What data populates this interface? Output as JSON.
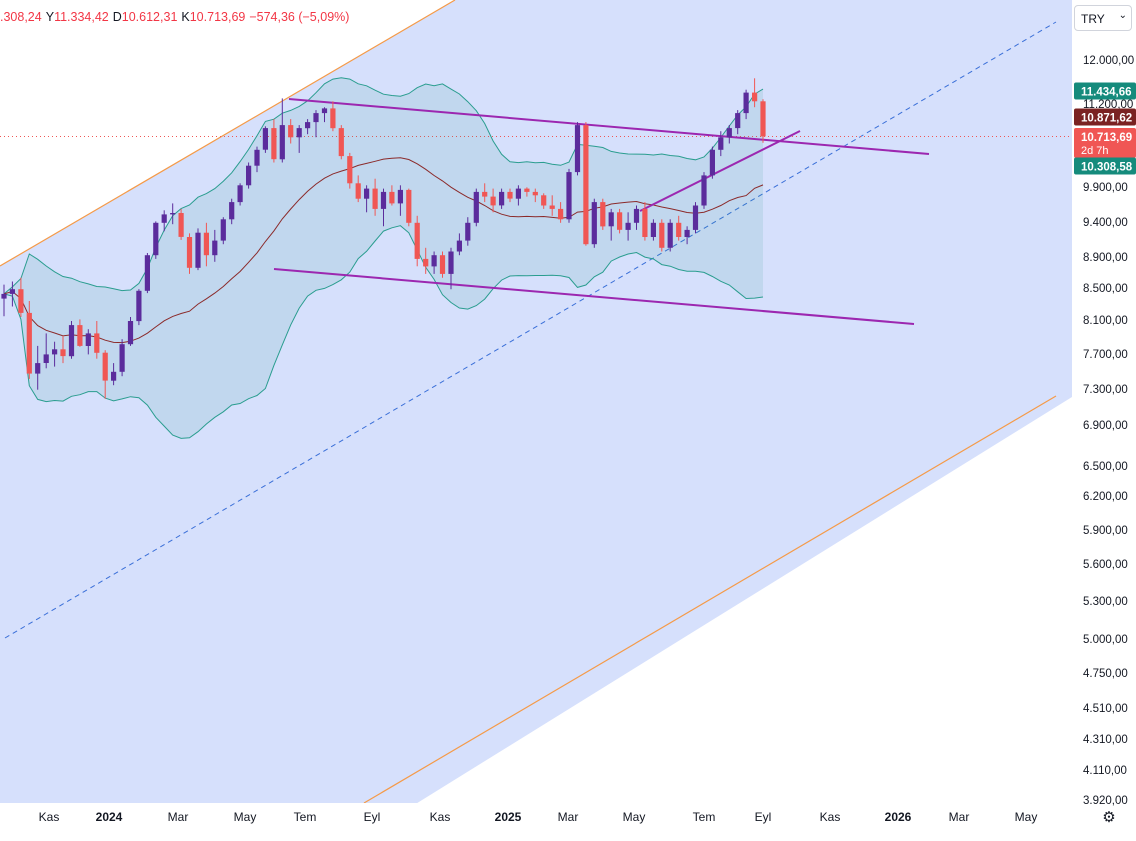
{
  "header": {
    "open": ".308,24",
    "high_prefix": "Y",
    "high": "11.334,42",
    "low_prefix": "D",
    "low": "10.612,31",
    "close_prefix": "K",
    "close": "10.713,69",
    "change": "−574,36 (−5,09%)"
  },
  "currency": {
    "label": "TRY"
  },
  "colors": {
    "up": "#5b2c9c",
    "down": "#f05654",
    "band": "#2a9d8f",
    "mid": "#8b2a2a",
    "channel": "#f59a48",
    "trend": "#9c27b0",
    "fill": "#d6e0fc",
    "dash": "#3a6fd8"
  },
  "chart_data": {
    "type": "candlestick",
    "scale": "log",
    "ylim": [
      3920,
      12400
    ],
    "x_labels": [
      "Kas",
      "2024",
      "Mar",
      "May",
      "Tem",
      "Eyl",
      "Kas",
      "2025",
      "Mar",
      "May",
      "Tem",
      "Eyl",
      "Kas",
      "2026",
      "Mar",
      "May"
    ],
    "y_ticks": [
      "12.000,00",
      "11.200,00",
      "9.900,00",
      "9.400,00",
      "8.900,00",
      "8.500,00",
      "8.100,00",
      "7.700,00",
      "7.300,00",
      "6.900,00",
      "6.500,00",
      "6.200,00",
      "5.900,00",
      "5.600,00",
      "5.300,00",
      "5.000,00",
      "4.750,00",
      "4.510,00",
      "4.310,00",
      "4.110,00",
      "3.920,00"
    ],
    "price_labels": [
      {
        "text": "11.434,66",
        "value": 11434.66,
        "color": "#158b7c"
      },
      {
        "text": "10.871,62",
        "value": 10871.62,
        "color": "#7a2222"
      },
      {
        "text": "10.713,69",
        "sub": "2d 7h",
        "value": 10713.69,
        "color": "#f05654"
      },
      {
        "text": "10.308,58",
        "value": 10308.58,
        "color": "#158b7c"
      }
    ],
    "current_price": 10713.69,
    "candles_ohlc": [
      [
        8380,
        8560,
        8160,
        8440
      ],
      [
        8440,
        8600,
        8280,
        8500
      ],
      [
        8500,
        8650,
        8150,
        8200
      ],
      [
        8200,
        8350,
        7420,
        7480
      ],
      [
        7480,
        7800,
        7300,
        7600
      ],
      [
        7600,
        7950,
        7540,
        7700
      ],
      [
        7700,
        7850,
        7560,
        7760
      ],
      [
        7760,
        7920,
        7600,
        7680
      ],
      [
        7680,
        8100,
        7650,
        8050
      ],
      [
        8050,
        8120,
        7790,
        7800
      ],
      [
        7800,
        8000,
        7700,
        7950
      ],
      [
        7950,
        8100,
        7650,
        7720
      ],
      [
        7720,
        7750,
        7200,
        7400
      ],
      [
        7400,
        7600,
        7350,
        7500
      ],
      [
        7500,
        7880,
        7450,
        7820
      ],
      [
        7820,
        8150,
        7800,
        8100
      ],
      [
        8100,
        8500,
        8050,
        8480
      ],
      [
        8480,
        8980,
        8450,
        8950
      ],
      [
        8950,
        9420,
        8900,
        9400
      ],
      [
        9400,
        9580,
        9280,
        9520
      ],
      [
        9520,
        9680,
        9380,
        9540
      ],
      [
        9540,
        9600,
        9160,
        9200
      ],
      [
        9200,
        9250,
        8700,
        8780
      ],
      [
        8780,
        9320,
        8750,
        9260
      ],
      [
        9260,
        9400,
        8800,
        8950
      ],
      [
        8950,
        9300,
        8860,
        9150
      ],
      [
        9150,
        9480,
        9100,
        9450
      ],
      [
        9450,
        9750,
        9380,
        9700
      ],
      [
        9700,
        9980,
        9650,
        9950
      ],
      [
        9950,
        10300,
        9900,
        10250
      ],
      [
        10250,
        10550,
        10150,
        10500
      ],
      [
        10500,
        10880,
        10450,
        10850
      ],
      [
        10850,
        11000,
        10300,
        10350
      ],
      [
        10350,
        11350,
        10300,
        10900
      ],
      [
        10900,
        11000,
        10600,
        10700
      ],
      [
        10700,
        10900,
        10450,
        10850
      ],
      [
        10850,
        11000,
        10750,
        10950
      ],
      [
        10950,
        11150,
        10700,
        11100
      ],
      [
        11100,
        11200,
        10950,
        11180
      ],
      [
        11180,
        11300,
        10800,
        10850
      ],
      [
        10850,
        10900,
        10350,
        10400
      ],
      [
        10400,
        10450,
        9900,
        9980
      ],
      [
        9980,
        10100,
        9700,
        9750
      ],
      [
        9750,
        9950,
        9550,
        9900
      ],
      [
        9900,
        10050,
        9500,
        9600
      ],
      [
        9600,
        9900,
        9350,
        9850
      ],
      [
        9850,
        9950,
        9650,
        9680
      ],
      [
        9680,
        9950,
        9500,
        9880
      ],
      [
        9880,
        9900,
        9350,
        9400
      ],
      [
        9400,
        9500,
        8800,
        8900
      ],
      [
        8900,
        9050,
        8700,
        8800
      ],
      [
        8800,
        9000,
        8700,
        8950
      ],
      [
        8950,
        9000,
        8650,
        8700
      ],
      [
        8700,
        9050,
        8500,
        9000
      ],
      [
        9000,
        9250,
        8950,
        9150
      ],
      [
        9150,
        9480,
        9080,
        9400
      ],
      [
        9400,
        9900,
        9350,
        9850
      ],
      [
        9850,
        9980,
        9700,
        9780
      ],
      [
        9780,
        9900,
        9550,
        9650
      ],
      [
        9650,
        9900,
        9600,
        9850
      ],
      [
        9850,
        9900,
        9700,
        9750
      ],
      [
        9750,
        9950,
        9650,
        9900
      ],
      [
        9900,
        9920,
        9780,
        9850
      ],
      [
        9850,
        9900,
        9700,
        9800
      ],
      [
        9800,
        9830,
        9600,
        9650
      ],
      [
        9650,
        9800,
        9500,
        9600
      ],
      [
        9600,
        9700,
        9400,
        9450
      ],
      [
        9450,
        10200,
        9400,
        10150
      ],
      [
        10150,
        10950,
        10100,
        10900
      ],
      [
        10900,
        10950,
        9080,
        9100
      ],
      [
        9100,
        9750,
        9050,
        9700
      ],
      [
        9700,
        9750,
        9300,
        9350
      ],
      [
        9350,
        9600,
        9150,
        9550
      ],
      [
        9550,
        9600,
        9250,
        9300
      ],
      [
        9300,
        9550,
        9150,
        9400
      ],
      [
        9400,
        9650,
        9300,
        9600
      ],
      [
        9600,
        9700,
        9150,
        9200
      ],
      [
        9200,
        9450,
        9150,
        9400
      ],
      [
        9400,
        9450,
        9000,
        9050
      ],
      [
        9050,
        9450,
        9000,
        9400
      ],
      [
        9400,
        9500,
        9150,
        9200
      ],
      [
        9200,
        9350,
        9100,
        9300
      ],
      [
        9300,
        9700,
        9250,
        9650
      ],
      [
        9650,
        10150,
        9600,
        10100
      ],
      [
        10100,
        10550,
        10050,
        10500
      ],
      [
        10500,
        10800,
        10400,
        10700
      ],
      [
        10700,
        10900,
        10600,
        10850
      ],
      [
        10850,
        11150,
        10750,
        11100
      ],
      [
        11100,
        11500,
        11000,
        11450
      ],
      [
        11450,
        11700,
        11200,
        11300
      ],
      [
        11300,
        11334,
        10612,
        10714
      ]
    ]
  }
}
